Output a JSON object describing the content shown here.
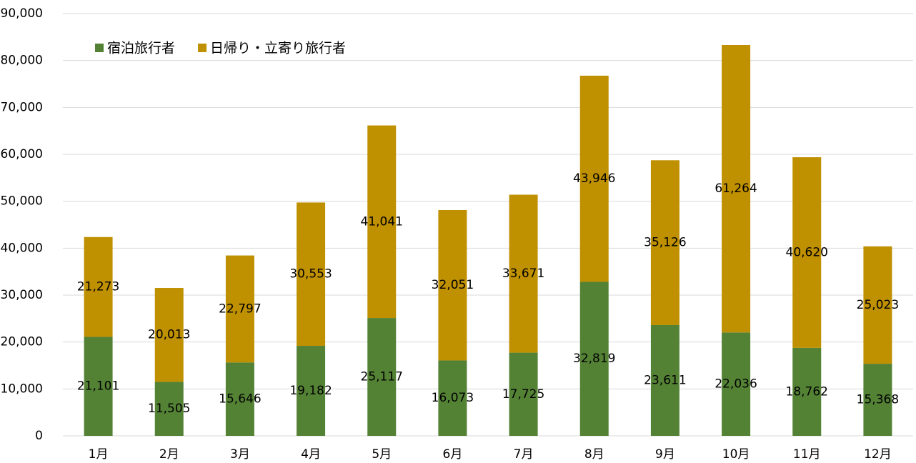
{
  "chart_data": {
    "type": "stacked_bar",
    "categories": [
      "1月",
      "2月",
      "3月",
      "4月",
      "5月",
      "6月",
      "7月",
      "8月",
      "9月",
      "10月",
      "11月",
      "12月"
    ],
    "series": [
      {
        "name": "宿泊旅行者",
        "color": "#548235",
        "values": [
          21101,
          11505,
          15646,
          19182,
          25117,
          16073,
          17725,
          32819,
          23611,
          22036,
          18762,
          15368
        ],
        "value_labels": [
          "21,101",
          "11,505",
          "15,646",
          "19,182",
          "25,117",
          "16,073",
          "17,725",
          "32,819",
          "23,611",
          "22,036",
          "18,762",
          "15,368"
        ]
      },
      {
        "name": "日帰り・立寄り旅行者",
        "color": "#bf9000",
        "values": [
          21273,
          20013,
          22797,
          30553,
          41041,
          32051,
          33671,
          43946,
          35126,
          61264,
          40620,
          25023
        ],
        "value_labels": [
          "21,273",
          "20,013",
          "22,797",
          "30,553",
          "41,041",
          "32,051",
          "33,671",
          "43,946",
          "35,126",
          "61,264",
          "40,620",
          "25,023"
        ]
      }
    ],
    "ylim": [
      0,
      90000
    ],
    "yticks": [
      0,
      {
        "value": 10000,
        "label": "10,000"
      },
      {
        "value": 20000,
        "label": "20,000"
      },
      {
        "value": 30000,
        "label": "30,000"
      },
      {
        "value": 40000,
        "label": "40,000"
      },
      {
        "value": 50000,
        "label": "50,000"
      },
      {
        "value": 60000,
        "label": "60,000"
      },
      {
        "value": 70000,
        "label": "70,000"
      },
      {
        "value": 80000,
        "label": "80,000"
      },
      {
        "value": 90000,
        "label": "90,000"
      }
    ],
    "grid": true,
    "legend": "top-left"
  }
}
